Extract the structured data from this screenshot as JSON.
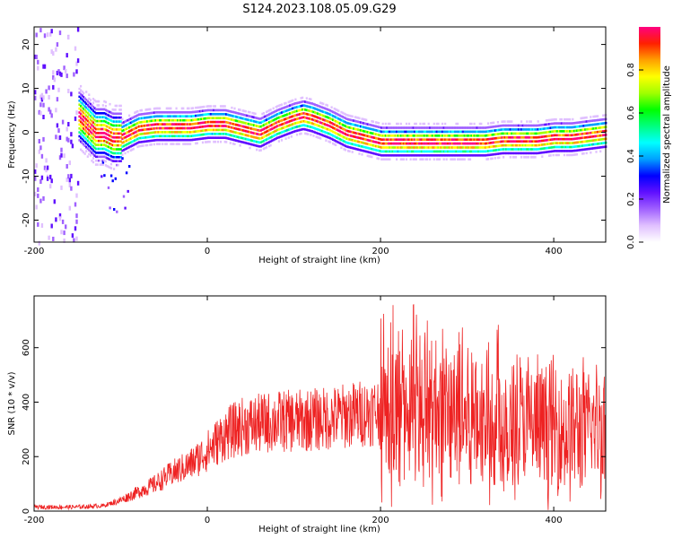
{
  "title": "S124.2023.108.05.09.G29",
  "chart_data": [
    {
      "type": "heatmap",
      "xlabel": "Height of straight line (km)",
      "ylabel": "Frequency (Hz)",
      "xlim": [
        -200,
        460
      ],
      "ylim": [
        -25,
        24
      ],
      "xticks": [
        -200,
        0,
        200,
        400
      ],
      "yticks": [
        -20,
        -10,
        0,
        10,
        20
      ],
      "colorbar": {
        "label": "Normalized spectral amplitude",
        "range": [
          0,
          1
        ],
        "ticks": [
          0.0,
          0.2,
          0.4,
          0.6,
          0.8
        ],
        "colors": [
          "#ffffff",
          "#e0c0ff",
          "#a060ff",
          "#6010ff",
          "#0000ff",
          "#00a0ff",
          "#00ffff",
          "#00ff80",
          "#00ff00",
          "#a0ff00",
          "#ffff00",
          "#ffa000",
          "#ff2000",
          "#ff0080"
        ]
      },
      "ridge": {
        "x": [
          -150,
          -140,
          -130,
          -120,
          -110,
          -100,
          -90,
          -80,
          -60,
          -40,
          -20,
          0,
          20,
          40,
          60,
          80,
          100,
          110,
          120,
          140,
          160,
          180,
          200,
          220,
          240,
          260,
          280,
          300,
          320,
          340,
          360,
          380,
          400,
          420,
          440,
          460
        ],
        "y": [
          4,
          2,
          0,
          0,
          -1,
          -1,
          0,
          1,
          1.5,
          1.5,
          1.5,
          2,
          2,
          1,
          0,
          2,
          3.5,
          4,
          3.5,
          2,
          0,
          -1,
          -2,
          -2,
          -2,
          -2,
          -2,
          -2,
          -2,
          -1.5,
          -1.5,
          -1.5,
          -1,
          -1,
          -0.5,
          0
        ]
      }
    },
    {
      "type": "line",
      "xlabel": "Height of straight line (km)",
      "ylabel": "SNR (10 * v/v)",
      "xlim": [
        -200,
        460
      ],
      "ylim": [
        0,
        790
      ],
      "xticks": [
        -200,
        0,
        200,
        400
      ],
      "yticks": [
        0,
        200,
        400,
        600
      ],
      "color": "#ee2222",
      "envelope": {
        "x": [
          -200,
          -150,
          -120,
          -100,
          -80,
          -60,
          -40,
          -20,
          0,
          20,
          40,
          60,
          80,
          100,
          120,
          140,
          160,
          180,
          200,
          220,
          240,
          260,
          280,
          300,
          320,
          340,
          360,
          380,
          400,
          420,
          440,
          460
        ],
        "y": [
          15,
          15,
          20,
          40,
          70,
          100,
          140,
          170,
          220,
          280,
          310,
          320,
          330,
          330,
          335,
          340,
          350,
          360,
          370,
          370,
          370,
          365,
          360,
          350,
          340,
          330,
          320,
          310,
          300,
          295,
          300,
          320
        ]
      }
    }
  ]
}
